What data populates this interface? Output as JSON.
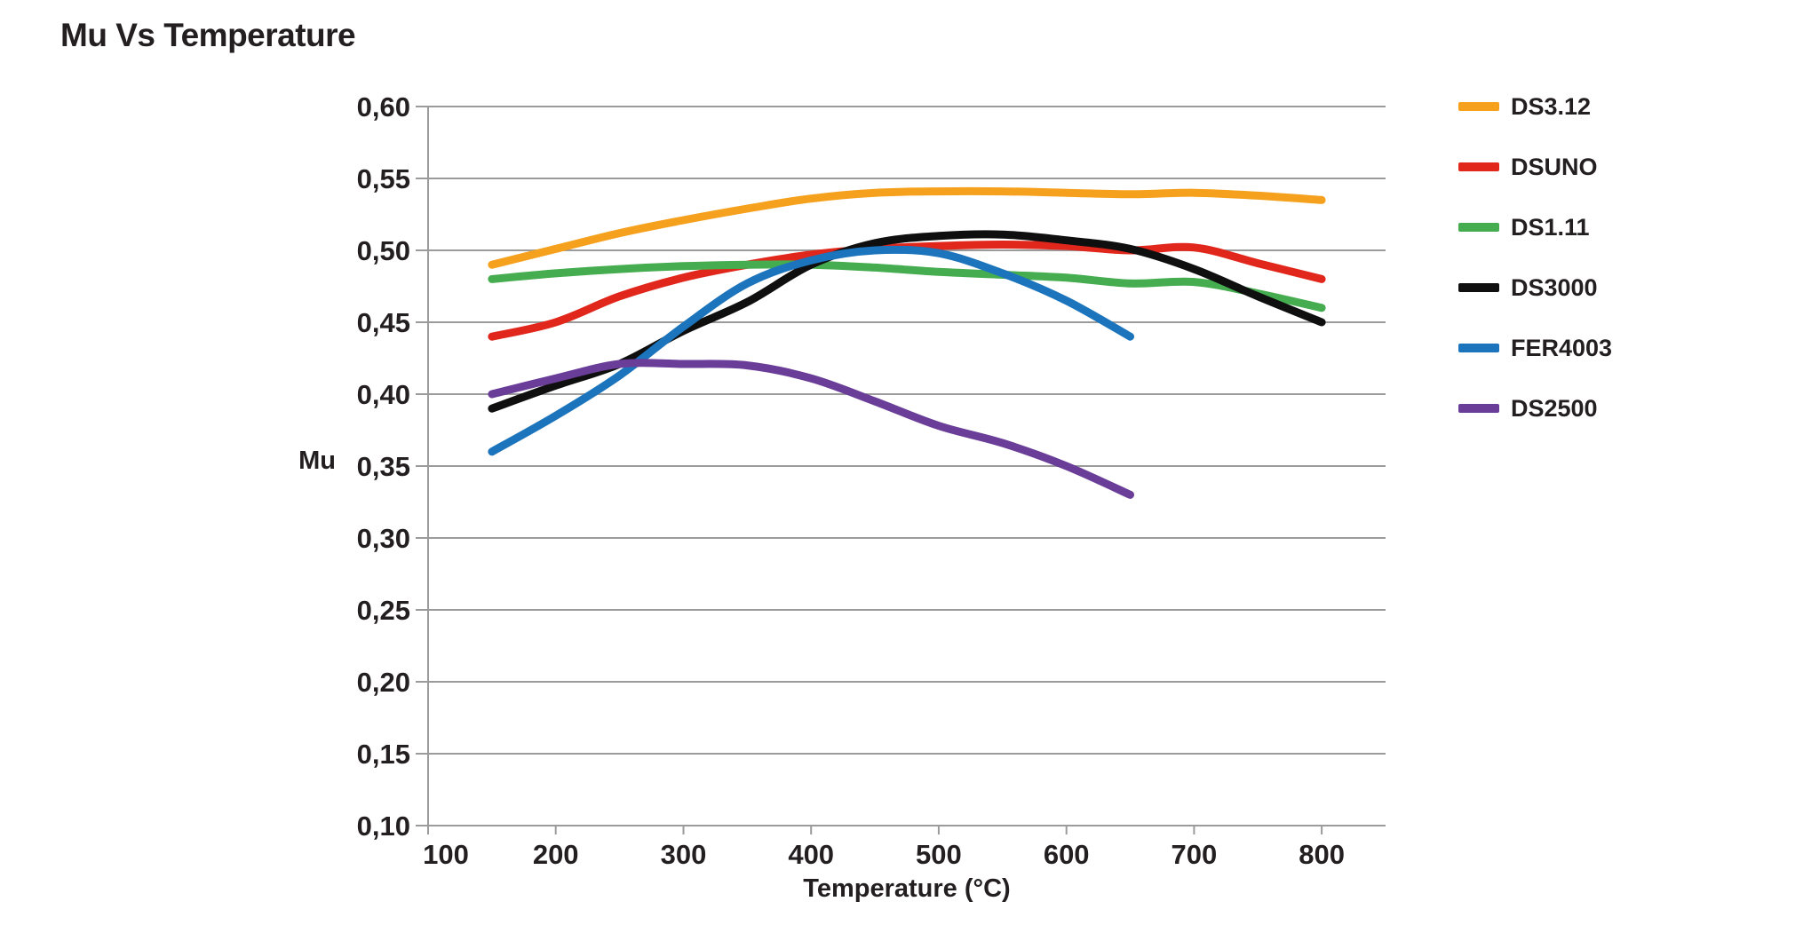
{
  "page": {
    "background": "#ffffff",
    "text_color": "#231f20"
  },
  "chart_data": {
    "type": "line",
    "title": "Mu Vs Temperature",
    "xlabel": "Temperature (°C)",
    "ylabel": "Mu",
    "xlim": [
      100,
      850
    ],
    "ylim": [
      0.1,
      0.6
    ],
    "grid": "horizontal",
    "grid_color": "#9b9b9b",
    "legend_position": "right",
    "decimal_separator": ",",
    "x_ticks": [
      100,
      200,
      300,
      400,
      500,
      600,
      700,
      800
    ],
    "x_tick_labels": [
      "100",
      "200",
      "300",
      "400",
      "500",
      "600",
      "700",
      "800"
    ],
    "y_ticks": [
      0.1,
      0.15,
      0.2,
      0.25,
      0.3,
      0.35,
      0.4,
      0.45,
      0.5,
      0.55,
      0.6
    ],
    "y_tick_labels": [
      "0,10",
      "0,15",
      "0,20",
      "0,25",
      "0,30",
      "0,35",
      "0,40",
      "0,45",
      "0,50",
      "0,55",
      "0,60"
    ],
    "series": [
      {
        "name": "DS3.12",
        "color": "#F6A11D",
        "x": [
          150,
          200,
          250,
          300,
          350,
          400,
          450,
          500,
          550,
          600,
          650,
          700,
          750,
          800
        ],
        "y": [
          0.49,
          0.501,
          0.512,
          0.521,
          0.529,
          0.536,
          0.54,
          0.541,
          0.541,
          0.54,
          0.539,
          0.54,
          0.538,
          0.535
        ]
      },
      {
        "name": "DSUNO",
        "color": "#E1261C",
        "x": [
          150,
          200,
          250,
          300,
          350,
          400,
          450,
          500,
          550,
          600,
          650,
          700,
          750,
          800
        ],
        "y": [
          0.44,
          0.45,
          0.468,
          0.481,
          0.49,
          0.497,
          0.501,
          0.503,
          0.504,
          0.503,
          0.5,
          0.502,
          0.491,
          0.48
        ]
      },
      {
        "name": "DS1.11",
        "color": "#45AC4F",
        "x": [
          150,
          200,
          250,
          300,
          350,
          400,
          450,
          500,
          550,
          600,
          650,
          700,
          750,
          800
        ],
        "y": [
          0.48,
          0.484,
          0.487,
          0.489,
          0.49,
          0.49,
          0.488,
          0.485,
          0.483,
          0.481,
          0.477,
          0.478,
          0.47,
          0.46
        ]
      },
      {
        "name": "DS3000",
        "color": "#0F0F0F",
        "x": [
          150,
          200,
          250,
          300,
          350,
          400,
          450,
          500,
          550,
          600,
          650,
          700,
          750,
          800
        ],
        "y": [
          0.39,
          0.406,
          0.421,
          0.444,
          0.464,
          0.49,
          0.505,
          0.51,
          0.511,
          0.507,
          0.501,
          0.487,
          0.468,
          0.45
        ]
      },
      {
        "name": "FER4003",
        "color": "#1B74BC",
        "x": [
          150,
          200,
          250,
          300,
          350,
          400,
          450,
          500,
          550,
          600,
          650
        ],
        "y": [
          0.36,
          0.385,
          0.413,
          0.447,
          0.477,
          0.493,
          0.5,
          0.498,
          0.484,
          0.465,
          0.44
        ]
      },
      {
        "name": "DS2500",
        "color": "#6A3E98",
        "x": [
          150,
          200,
          250,
          300,
          350,
          400,
          450,
          500,
          550,
          600,
          650
        ],
        "y": [
          0.4,
          0.411,
          0.421,
          0.421,
          0.42,
          0.411,
          0.395,
          0.378,
          0.366,
          0.35,
          0.33
        ]
      }
    ]
  }
}
